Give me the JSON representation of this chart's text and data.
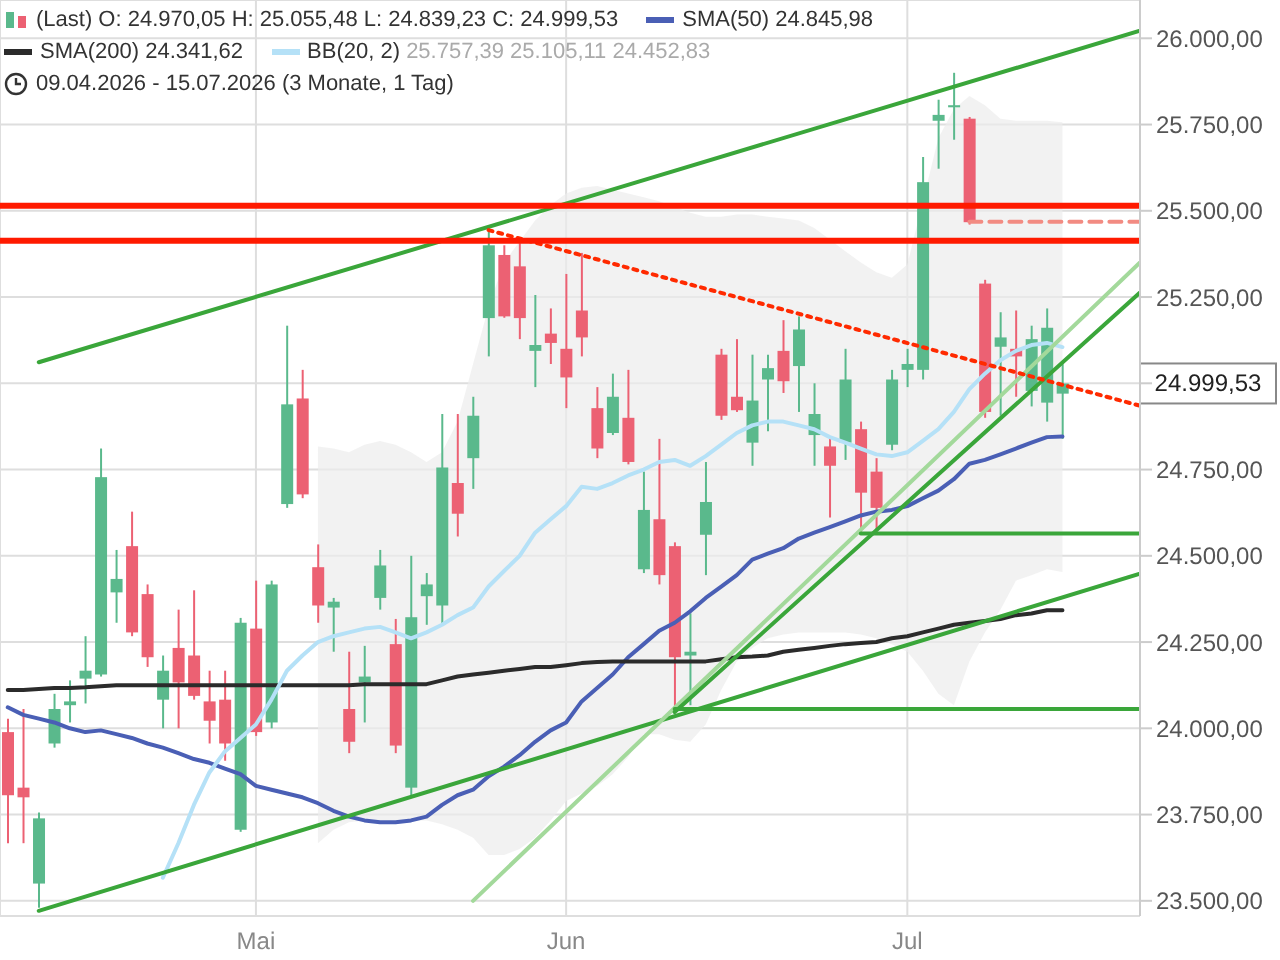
{
  "chart_data": {
    "type": "candlestick",
    "title": "(Last) O: 24.970,05 H: 25.055,48 L: 24.839,23 C: 24.999,53",
    "subtitle": "09.04.2026 - 15.07.2026 (3 Monate, 1 Tag)",
    "categories": [
      null,
      null,
      null,
      null,
      null,
      null,
      null,
      null,
      null,
      null,
      null,
      null,
      null,
      null,
      null,
      null,
      "Mai",
      null,
      null,
      null,
      null,
      null,
      null,
      null,
      null,
      null,
      null,
      null,
      null,
      null,
      null,
      null,
      null,
      null,
      null,
      null,
      "Jun",
      null,
      null,
      null,
      null,
      null,
      null,
      null,
      null,
      null,
      null,
      null,
      null,
      null,
      null,
      null,
      null,
      null,
      null,
      null,
      null,
      null,
      "Jul",
      null,
      null,
      null,
      null,
      null,
      null,
      null,
      null,
      null,
      null,
      null,
      null,
      null,
      null,
      null
    ],
    "ohlc": [
      [
        23989,
        24028,
        23667,
        23806
      ],
      [
        23828,
        24056,
        23667,
        23800
      ],
      [
        23550,
        23756,
        23480,
        23739
      ],
      [
        23956,
        24100,
        23944,
        24056
      ],
      [
        24067,
        24139,
        24017,
        24078
      ],
      [
        24144,
        24267,
        24072,
        24167
      ],
      [
        24156,
        24811,
        24150,
        24728
      ],
      [
        24394,
        24517,
        24306,
        24433
      ],
      [
        24528,
        24628,
        24267,
        24278
      ],
      [
        24389,
        24417,
        24178,
        24206
      ],
      [
        24083,
        24211,
        24000,
        24167
      ],
      [
        24233,
        24344,
        24000,
        24133
      ],
      [
        24211,
        24400,
        24083,
        24094
      ],
      [
        24078,
        24167,
        23956,
        24022
      ],
      [
        24083,
        24167,
        23906,
        23956
      ],
      [
        23706,
        24320,
        23700,
        24306
      ],
      [
        24289,
        24428,
        23978,
        23989
      ],
      [
        24017,
        24428,
        24000,
        24417
      ],
      [
        24650,
        25167,
        24639,
        24939
      ],
      [
        24956,
        25039,
        24667,
        24678
      ],
      [
        24467,
        24533,
        24306,
        24356
      ],
      [
        24350,
        24378,
        24222,
        24367
      ],
      [
        24056,
        24222,
        23928,
        23961
      ],
      [
        24133,
        24239,
        24017,
        24150
      ],
      [
        24378,
        24517,
        24344,
        24472
      ],
      [
        24244,
        24317,
        23928,
        23950
      ],
      [
        23828,
        24500,
        23800,
        24322
      ],
      [
        24383,
        24450,
        24300,
        24417
      ],
      [
        24356,
        24911,
        24300,
        24756
      ],
      [
        24711,
        24911,
        24556,
        24622
      ],
      [
        24783,
        24961,
        24694,
        24906
      ],
      [
        25189,
        25456,
        25078,
        25400
      ],
      [
        25372,
        25400,
        25190,
        25194
      ],
      [
        25339,
        25406,
        25128,
        25189
      ],
      [
        25094,
        25256,
        24989,
        25111
      ],
      [
        25144,
        25217,
        25056,
        25117
      ],
      [
        25100,
        25317,
        24928,
        25017
      ],
      [
        25211,
        25378,
        25078,
        25133
      ],
      [
        24928,
        24989,
        24783,
        24811
      ],
      [
        24856,
        25028,
        24850,
        24961
      ],
      [
        24900,
        25039,
        24765,
        24772
      ],
      [
        24461,
        24744,
        24450,
        24633
      ],
      [
        24606,
        24839,
        24417,
        24444
      ],
      [
        24528,
        24539,
        24056,
        24206
      ],
      [
        24211,
        24333,
        24067,
        24222
      ],
      [
        24561,
        24772,
        24444,
        24656
      ],
      [
        25083,
        25100,
        24894,
        24906
      ],
      [
        24961,
        25128,
        24917,
        24922
      ],
      [
        24828,
        25083,
        24761,
        24950
      ],
      [
        25011,
        25083,
        24861,
        25044
      ],
      [
        25094,
        25183,
        24972,
        25006
      ],
      [
        25050,
        25194,
        24917,
        25156
      ],
      [
        24850,
        25000,
        24761,
        24911
      ],
      [
        24817,
        24844,
        24611,
        24761
      ],
      [
        24828,
        25100,
        24778,
        25011
      ],
      [
        24867,
        24889,
        24567,
        24683
      ],
      [
        24744,
        24783,
        24572,
        24639
      ],
      [
        24822,
        25039,
        24806,
        25011
      ],
      [
        25039,
        25100,
        24989,
        25056
      ],
      [
        25039,
        25656,
        25011,
        25583
      ],
      [
        25761,
        25822,
        25622,
        25778
      ],
      [
        25800,
        25900,
        25706,
        25806
      ],
      [
        25767,
        25772,
        25460,
        25467
      ],
      [
        25289,
        25300,
        24900,
        24917
      ],
      [
        25106,
        25206,
        24906,
        25133
      ],
      [
        25100,
        25211,
        24961,
        25078
      ],
      [
        24978,
        25167,
        24933,
        25128
      ],
      [
        24944,
        25217,
        24889,
        25161
      ],
      [
        24970.05,
        25055.48,
        24839.23,
        24999.53
      ],
      null,
      null,
      null,
      null,
      null
    ],
    "colors": [
      "#ec6173",
      "#ec6173",
      "#5ab98c",
      "#5ab98c",
      "#5ab98c",
      "#5ab98c",
      "#5ab98c",
      "#5ab98c",
      "#ec6173",
      "#ec6173",
      "#5ab98c",
      "#ec6173",
      "#ec6173",
      "#ec6173",
      "#ec6173",
      "#5ab98c",
      "#ec6173",
      "#5ab98c",
      "#5ab98c",
      "#ec6173",
      "#ec6173",
      "#5ab98c",
      "#ec6173",
      "#5ab98c",
      "#5ab98c",
      "#ec6173",
      "#5ab98c",
      "#5ab98c",
      "#5ab98c",
      "#ec6173",
      "#5ab98c",
      "#5ab98c",
      "#ec6173",
      "#ec6173",
      "#5ab98c",
      "#ec6173",
      "#ec6173",
      "#ec6173",
      "#ec6173",
      "#5ab98c",
      "#ec6173",
      "#5ab98c",
      "#ec6173",
      "#ec6173",
      "#5ab98c",
      "#5ab98c",
      "#ec6173",
      "#ec6173",
      "#5ab98c",
      "#5ab98c",
      "#ec6173",
      "#5ab98c",
      "#5ab98c",
      "#ec6173",
      "#5ab98c",
      "#ec6173",
      "#ec6173",
      "#5ab98c",
      "#5ab98c",
      "#5ab98c",
      "#5ab98c",
      "#5ab98c",
      "#ec6173",
      "#ec6173",
      "#5ab98c",
      "#ec6173",
      "#5ab98c",
      "#5ab98c",
      "#5ab98c",
      null,
      null,
      null,
      null,
      null
    ],
    "series": [
      {
        "name": "SMA(50)",
        "type": "line",
        "color": "#4a5fb5",
        "values": [
          24061,
          24039,
          24028,
          24017,
          24000,
          23989,
          23994,
          23983,
          23972,
          23956,
          23944,
          23928,
          23911,
          23900,
          23883,
          23867,
          23833,
          23822,
          23811,
          23800,
          23783,
          23761,
          23744,
          23733,
          23728,
          23728,
          23733,
          23744,
          23778,
          23806,
          23822,
          23861,
          23889,
          23922,
          23961,
          23994,
          24017,
          24078,
          24117,
          24156,
          24206,
          24244,
          24283,
          24306,
          24339,
          24378,
          24411,
          24444,
          24489,
          24506,
          24522,
          24550,
          24567,
          24583,
          24600,
          24617,
          24628,
          24633,
          24644,
          24667,
          24689,
          24722,
          24767,
          24778,
          24794,
          24811,
          24828,
          24844,
          24846,
          null,
          null,
          null,
          null,
          null
        ]
      },
      {
        "name": "SMA(200)",
        "type": "line",
        "color": "#2b2b2b",
        "values": [
          24111,
          24111,
          24114,
          24117,
          24117,
          24119,
          24122,
          24125,
          24125,
          24125,
          24125,
          24125,
          24125,
          24125,
          24125,
          24125,
          24125,
          24125,
          24125,
          24125,
          24125,
          24125,
          24125,
          24128,
          24128,
          24128,
          24128,
          24128,
          24139,
          24150,
          24156,
          24161,
          24167,
          24172,
          24178,
          24178,
          24183,
          24189,
          24192,
          24194,
          24194,
          24194,
          24194,
          24194,
          24194,
          24194,
          24200,
          24206,
          24208,
          24211,
          24222,
          24228,
          24233,
          24239,
          24244,
          24247,
          24250,
          24261,
          24267,
          24278,
          24289,
          24300,
          24306,
          24311,
          24317,
          24328,
          24333,
          24342,
          24342,
          null,
          null,
          null,
          null,
          null
        ]
      },
      {
        "name": "BB(20, 2)",
        "type": "line",
        "color": "#b5e1f7",
        "values": [
          null,
          null,
          null,
          null,
          null,
          null,
          null,
          null,
          null,
          null,
          23567,
          23667,
          23778,
          23872,
          23933,
          23972,
          24011,
          24083,
          24167,
          24211,
          24250,
          24267,
          24278,
          24289,
          24294,
          24278,
          24261,
          24278,
          24300,
          24328,
          24350,
          24411,
          24456,
          24500,
          24567,
          24606,
          24644,
          24700,
          24694,
          24711,
          24733,
          24750,
          24772,
          24778,
          24761,
          24789,
          24822,
          24856,
          24878,
          24889,
          24889,
          24878,
          24867,
          24844,
          24828,
          24811,
          24794,
          24789,
          24800,
          24833,
          24867,
          24917,
          24983,
          25028,
          25067,
          25094,
          25111,
          25117,
          25105,
          null,
          null,
          null,
          null,
          null
        ],
        "upper": [
          null,
          null,
          null,
          null,
          null,
          null,
          null,
          null,
          null,
          null,
          null,
          null,
          null,
          null,
          null,
          null,
          null,
          null,
          null,
          null,
          24817,
          24811,
          24800,
          24822,
          24833,
          24822,
          24800,
          24772,
          24800,
          24889,
          25056,
          25222,
          25350,
          25411,
          25472,
          25517,
          25550,
          25567,
          25572,
          25561,
          25550,
          25539,
          25528,
          25511,
          25494,
          25483,
          25483,
          25489,
          25489,
          25483,
          25478,
          25472,
          25450,
          25417,
          25383,
          25350,
          25322,
          25306,
          25344,
          25528,
          25711,
          25794,
          25833,
          25806,
          25767,
          25761,
          25761,
          25761,
          25757,
          null,
          null,
          null,
          null,
          null
        ],
        "lower": [
          null,
          null,
          null,
          null,
          null,
          null,
          null,
          null,
          null,
          null,
          null,
          null,
          null,
          null,
          null,
          null,
          null,
          null,
          null,
          null,
          23667,
          23706,
          23728,
          23733,
          23733,
          23733,
          23733,
          23733,
          23722,
          23706,
          23683,
          23633,
          23633,
          23650,
          23683,
          23733,
          23789,
          23811,
          23833,
          23867,
          23917,
          23983,
          23983,
          23967,
          23961,
          24011,
          24111,
          24194,
          24233,
          24261,
          24272,
          24278,
          24278,
          24278,
          24278,
          24272,
          24261,
          24244,
          24222,
          24167,
          24100,
          24067,
          24194,
          24278,
          24344,
          24428,
          24444,
          24461,
          24453,
          null,
          null,
          null,
          null,
          null
        ]
      },
      {
        "type": "line",
        "color": "#3aa63a",
        "values": [
          null,
          null,
          25061,
          null,
          null,
          null,
          null,
          null,
          null,
          null,
          null,
          null,
          null,
          null,
          null,
          null,
          null,
          null,
          null,
          null,
          null,
          null,
          null,
          null,
          null,
          null,
          null,
          null,
          null,
          null,
          null,
          null,
          null,
          null,
          null,
          null,
          null,
          null,
          null,
          null,
          null,
          null,
          null,
          null,
          null,
          null,
          null,
          null,
          null,
          null,
          null,
          null,
          null,
          null,
          null,
          null,
          null,
          null,
          null,
          null,
          null,
          null,
          null,
          null,
          null,
          null,
          null,
          null,
          null,
          null,
          null,
          null,
          null,
          26022
        ]
      },
      {
        "type": "line",
        "color": "#3aa63a",
        "values": [
          null,
          null,
          23471,
          null,
          null,
          null,
          null,
          null,
          null,
          null,
          null,
          null,
          null,
          null,
          null,
          null,
          null,
          null,
          null,
          null,
          null,
          null,
          null,
          null,
          null,
          null,
          null,
          null,
          null,
          null,
          null,
          null,
          null,
          null,
          null,
          null,
          null,
          null,
          null,
          null,
          null,
          null,
          null,
          null,
          null,
          null,
          null,
          null,
          null,
          null,
          null,
          null,
          null,
          null,
          null,
          null,
          null,
          null,
          null,
          null,
          null,
          null,
          null,
          null,
          null,
          null,
          null,
          null,
          null,
          null,
          null,
          null,
          null,
          24448
        ]
      },
      {
        "type": "line",
        "color": "#a3d99b",
        "values": [
          null,
          null,
          null,
          null,
          null,
          null,
          null,
          null,
          null,
          null,
          null,
          null,
          null,
          null,
          null,
          null,
          null,
          null,
          null,
          null,
          null,
          null,
          null,
          null,
          null,
          null,
          null,
          null,
          null,
          null,
          23500,
          null,
          null,
          null,
          null,
          null,
          null,
          null,
          null,
          null,
          null,
          null,
          null,
          null,
          null,
          null,
          null,
          null,
          null,
          null,
          null,
          null,
          null,
          null,
          null,
          null,
          null,
          null,
          null,
          null,
          null,
          null,
          null,
          null,
          null,
          null,
          null,
          null,
          null,
          null,
          null,
          null,
          null,
          25350
        ]
      },
      {
        "type": "line",
        "color": "#3aa63a",
        "values": [
          null,
          null,
          null,
          null,
          null,
          null,
          null,
          null,
          null,
          null,
          null,
          null,
          null,
          null,
          null,
          null,
          null,
          null,
          null,
          null,
          null,
          null,
          null,
          null,
          null,
          null,
          null,
          null,
          null,
          null,
          null,
          null,
          null,
          null,
          null,
          null,
          null,
          null,
          null,
          null,
          null,
          null,
          null,
          24047,
          null,
          null,
          null,
          null,
          null,
          null,
          null,
          null,
          null,
          null,
          null,
          null,
          null,
          null,
          null,
          null,
          null,
          null,
          null,
          null,
          null,
          null,
          null,
          null,
          null,
          null,
          null,
          null,
          null,
          25263
        ]
      },
      {
        "type": "line",
        "color": "#3aa63a",
        "values": [
          null,
          null,
          null,
          null,
          null,
          null,
          null,
          null,
          null,
          null,
          null,
          null,
          null,
          null,
          null,
          null,
          null,
          null,
          null,
          null,
          null,
          null,
          null,
          null,
          null,
          null,
          null,
          null,
          null,
          null,
          null,
          null,
          null,
          null,
          null,
          null,
          null,
          null,
          null,
          null,
          null,
          null,
          null,
          24056,
          null,
          null,
          null,
          null,
          null,
          null,
          null,
          null,
          null,
          null,
          null,
          null,
          null,
          null,
          null,
          null,
          null,
          null,
          null,
          null,
          null,
          null,
          null,
          null,
          null,
          null,
          null,
          null,
          null,
          24056
        ]
      },
      {
        "type": "line",
        "color": "#3aa63a",
        "values": [
          null,
          null,
          null,
          null,
          null,
          null,
          null,
          null,
          null,
          null,
          null,
          null,
          null,
          null,
          null,
          null,
          null,
          null,
          null,
          null,
          null,
          null,
          null,
          null,
          null,
          null,
          null,
          null,
          null,
          null,
          null,
          null,
          null,
          null,
          null,
          null,
          null,
          null,
          null,
          null,
          null,
          null,
          null,
          null,
          null,
          null,
          null,
          null,
          null,
          null,
          null,
          null,
          null,
          null,
          null,
          24565,
          null,
          null,
          null,
          null,
          null,
          null,
          null,
          null,
          null,
          null,
          null,
          null,
          null,
          null,
          null,
          null,
          null,
          24565
        ]
      },
      {
        "type": "line",
        "color": "#ff2a00",
        "line_style": "dotted",
        "values": [
          null,
          null,
          null,
          null,
          null,
          null,
          null,
          null,
          null,
          null,
          null,
          null,
          null,
          null,
          null,
          null,
          null,
          null,
          null,
          null,
          null,
          null,
          null,
          null,
          null,
          null,
          null,
          null,
          null,
          null,
          null,
          25444,
          null,
          null,
          null,
          null,
          null,
          null,
          null,
          null,
          null,
          null,
          null,
          null,
          null,
          null,
          null,
          null,
          null,
          null,
          null,
          null,
          null,
          null,
          null,
          null,
          null,
          null,
          null,
          null,
          null,
          null,
          null,
          null,
          null,
          null,
          null,
          null,
          null,
          null,
          null,
          null,
          null,
          24935
        ]
      },
      {
        "type": "line",
        "color": "#f28b82",
        "line_style": "dashed",
        "values": [
          null,
          null,
          null,
          null,
          null,
          null,
          null,
          null,
          null,
          null,
          null,
          null,
          null,
          null,
          null,
          null,
          null,
          null,
          null,
          null,
          null,
          null,
          null,
          null,
          null,
          null,
          null,
          null,
          null,
          null,
          null,
          null,
          null,
          null,
          null,
          null,
          null,
          null,
          null,
          null,
          null,
          null,
          null,
          null,
          null,
          null,
          null,
          null,
          null,
          null,
          null,
          null,
          null,
          null,
          null,
          null,
          null,
          null,
          null,
          null,
          null,
          null,
          25468,
          null,
          null,
          null,
          null,
          null,
          null,
          null,
          null,
          null,
          null,
          25468
        ]
      }
    ],
    "ref_lines": [
      {
        "axis": "y",
        "value": 25515,
        "color": "#ff1a00"
      },
      {
        "axis": "y",
        "value": 25413,
        "color": "#ff1a00"
      }
    ],
    "ylim": [
      23456,
      26111
    ],
    "yticks": [
      {
        "value": 23500,
        "label": "23.500,00"
      },
      {
        "value": 23750,
        "label": "23.750,00"
      },
      {
        "value": 24000,
        "label": "24.000,00"
      },
      {
        "value": 24250,
        "label": "24.250,00"
      },
      {
        "value": 24500,
        "label": "24.500,00"
      },
      {
        "value": 24750,
        "label": "24.750,00"
      },
      {
        "value": 25000,
        "label": null
      },
      {
        "value": 25250,
        "label": "25.250,00"
      },
      {
        "value": 25500,
        "label": "25.500,00"
      },
      {
        "value": 25750,
        "label": "25.750,00"
      },
      {
        "value": 26000,
        "label": "26.000,00"
      }
    ],
    "annotations": [
      "24.999,53",
      "24.845,98",
      "24.341,62",
      "25.757,39 25.105,11 24.452,83"
    ],
    "grid": true,
    "legend": "top left",
    "marker": "none"
  }
}
